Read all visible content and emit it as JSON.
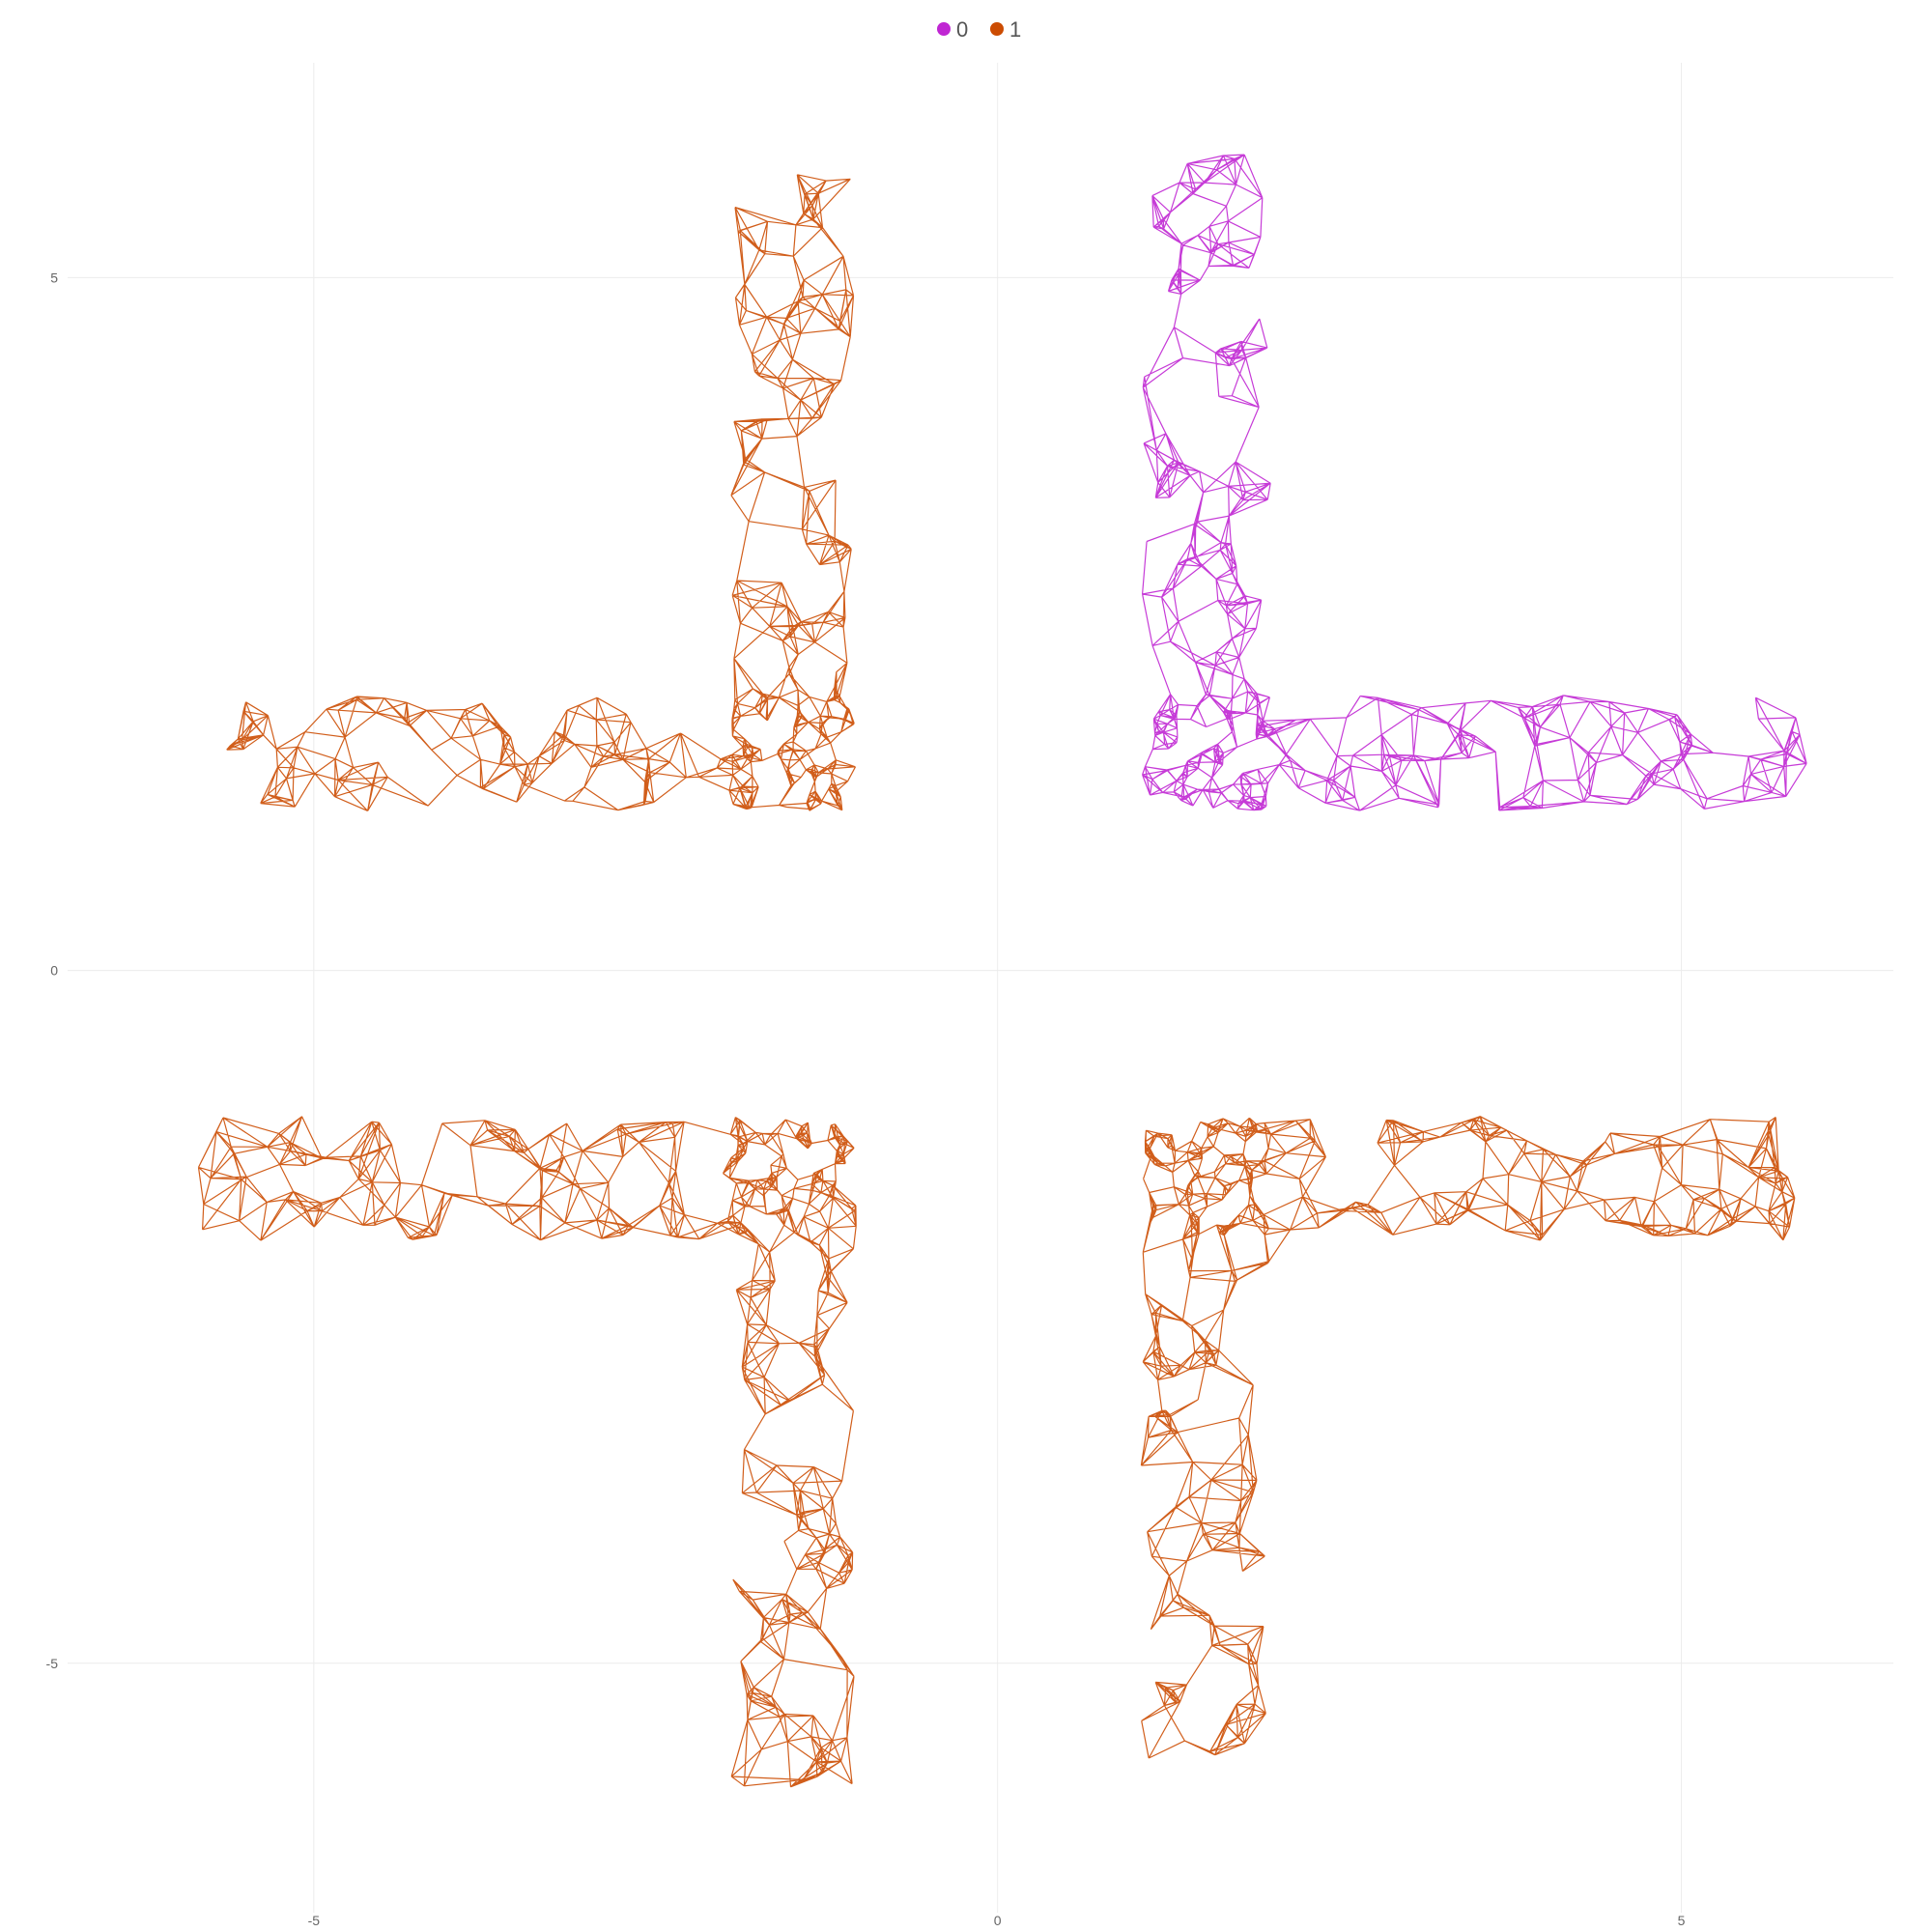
{
  "chart_data": {
    "type": "network",
    "title": "",
    "xlabel": "",
    "ylabel": "",
    "xlim": [
      -6.8,
      6.55
    ],
    "ylim": [
      -6.8,
      6.55
    ],
    "x_ticks": [
      -5,
      0,
      5
    ],
    "y_ticks": [
      -5,
      0,
      5
    ],
    "grid": true,
    "legend": {
      "position": "top-center",
      "entries": [
        {
          "label": "0",
          "color": "#c026d3"
        },
        {
          "label": "1",
          "color": "#cc4c02"
        }
      ]
    },
    "series": [
      {
        "name": "0",
        "color": "#c026d3",
        "shape": "L-corner, opening up-right",
        "x_range": [
          1.02,
          5.96
        ],
        "y_range": [
          1.11,
          5.9
        ]
      },
      {
        "name": "1",
        "color": "#cc4c02",
        "shape": "mirrored L-corner (top-left quadrant)",
        "x_range": [
          -5.7,
          -1.02
        ],
        "y_range": [
          1.11,
          5.9
        ]
      },
      {
        "name": "1",
        "color": "#cc4c02",
        "shape": "L-corner (bottom-left quadrant)",
        "x_range": [
          -5.95,
          -1.02
        ],
        "y_range": [
          -5.95,
          -1.05
        ]
      },
      {
        "name": "1",
        "color": "#cc4c02",
        "shape": "L-corner (bottom-right quadrant)",
        "x_range": [
          1.02,
          5.9
        ],
        "y_range": [
          -5.75,
          -1.05
        ]
      }
    ]
  }
}
